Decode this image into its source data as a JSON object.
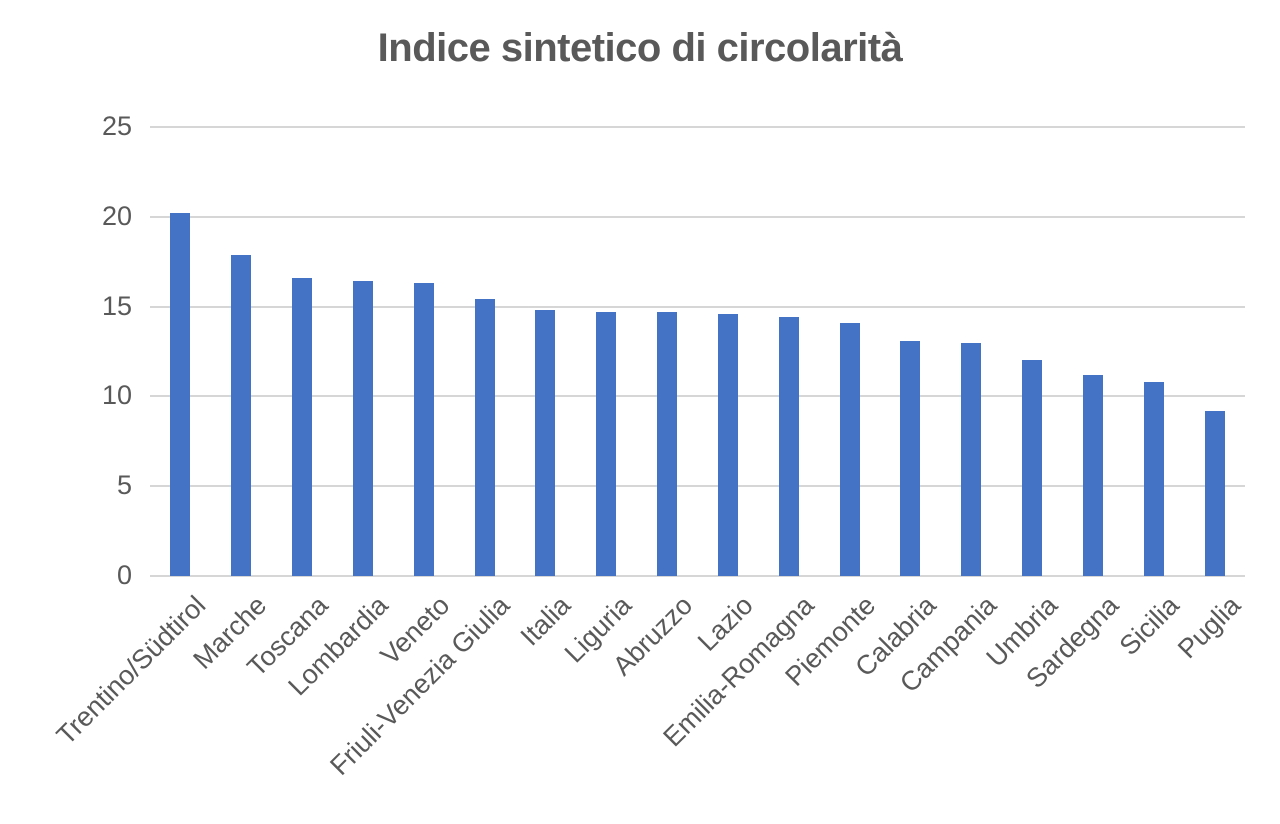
{
  "chart_data": {
    "type": "bar",
    "title": "Indice sintetico di circolarità",
    "categories": [
      "Trentino/Südtirol",
      "Marche",
      "Toscana",
      "Lombardia",
      "Veneto",
      "Friuli-Venezia Giulia",
      "Italia",
      "Liguria",
      "Abruzzo",
      "Lazio",
      "Emilia-Romagna",
      "Piemonte",
      "Calabria",
      "Campania",
      "Umbria",
      "Sardegna",
      "Sicilia",
      "Puglia"
    ],
    "values": [
      20.2,
      17.9,
      16.6,
      16.4,
      16.3,
      15.4,
      14.8,
      14.7,
      14.7,
      14.6,
      14.4,
      14.1,
      13.1,
      13.0,
      12.0,
      11.2,
      10.8,
      9.2
    ],
    "xlabel": "",
    "ylabel": "",
    "ylim": [
      0,
      25
    ],
    "yticks": [
      0,
      5,
      10,
      15,
      20,
      25
    ],
    "grid": true,
    "legend_position": "none",
    "bar_color": "#4472C4",
    "grid_color": "#D6D6D6",
    "text_color": "#595959",
    "title_color": "#595959",
    "background": "#FFFFFF"
  }
}
